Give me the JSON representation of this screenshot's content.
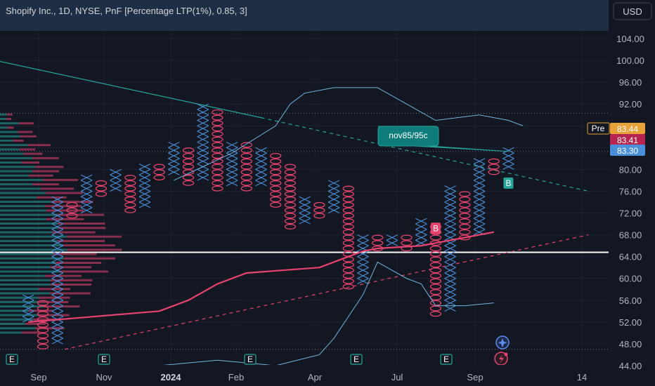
{
  "header": {
    "title": "Shopify Inc., 1D, NYSE, PnF [Percentage LTP(1%), 0.85, 3]",
    "currency_button": "USD"
  },
  "colors": {
    "background": "#131722",
    "x_column": "#4a90d9",
    "o_column": "#e8436f",
    "grid": "#363a45",
    "white_line": "#ffffff",
    "teal_trend": "#26a69a",
    "red_trend": "#e8436f",
    "band": "#6fb6e0"
  },
  "price_axis": {
    "ticks": [
      "104.00",
      "100.00",
      "96.00",
      "92.00",
      "80.00",
      "76.00",
      "72.00",
      "68.00",
      "64.00",
      "60.00",
      "56.00",
      "52.00",
      "48.00",
      "44.00"
    ],
    "badges": [
      {
        "prefix": "Pre",
        "label": "83.44",
        "value": 83.44,
        "color": "#e8a23a"
      },
      {
        "prefix": "",
        "label": "83.41",
        "value": 83.41,
        "color": "#b5254f"
      },
      {
        "prefix": "",
        "label": "83.30",
        "value": 83.3,
        "color": "#4a90d9"
      }
    ]
  },
  "time_axis": {
    "labels": [
      {
        "text": "Sep",
        "bold": false
      },
      {
        "text": "Nov",
        "bold": false
      },
      {
        "text": "2024",
        "bold": true
      },
      {
        "text": "Feb",
        "bold": false
      },
      {
        "text": "Apr",
        "bold": false
      },
      {
        "text": "Jul",
        "bold": false
      },
      {
        "text": "Sep",
        "bold": false
      },
      {
        "text": "14",
        "bold": false
      }
    ]
  },
  "annotations": {
    "callout": "nov85/95c",
    "buy_signals": [
      "B",
      "B"
    ],
    "earnings_marker": "E"
  },
  "chart_data": {
    "type": "point-and-figure",
    "title": "Shopify Inc., 1D, NYSE, PnF [Percentage LTP(1%), 0.85, 3]",
    "ylim": [
      43,
      107
    ],
    "ylabel": "",
    "currency": "USD",
    "last_price": 83.3,
    "horizontal_level": 64.8,
    "dotted_levels": [
      90.3,
      83.3,
      47.0
    ],
    "columns": [
      {
        "type": "X",
        "low": 52,
        "high": 56
      },
      {
        "type": "O",
        "low": 47,
        "high": 55
      },
      {
        "type": "X",
        "low": 48,
        "high": 74
      },
      {
        "type": "O",
        "low": 71,
        "high": 73
      },
      {
        "type": "X",
        "low": 72,
        "high": 78
      },
      {
        "type": "O",
        "low": 75,
        "high": 77
      },
      {
        "type": "X",
        "low": 76,
        "high": 79
      },
      {
        "type": "O",
        "low": 72,
        "high": 78
      },
      {
        "type": "X",
        "low": 73,
        "high": 80
      },
      {
        "type": "O",
        "low": 78,
        "high": 80
      },
      {
        "type": "X",
        "low": 79,
        "high": 84
      },
      {
        "type": "O",
        "low": 77,
        "high": 83
      },
      {
        "type": "X",
        "low": 78,
        "high": 91
      },
      {
        "type": "O",
        "low": 76,
        "high": 90
      },
      {
        "type": "X",
        "low": 77,
        "high": 84
      },
      {
        "type": "O",
        "low": 76,
        "high": 84
      },
      {
        "type": "X",
        "low": 77,
        "high": 83
      },
      {
        "type": "O",
        "low": 73,
        "high": 82
      },
      {
        "type": "O",
        "low": 69,
        "high": 80
      },
      {
        "type": "X",
        "low": 70,
        "high": 74
      },
      {
        "type": "O",
        "low": 71,
        "high": 73
      },
      {
        "type": "X",
        "low": 72,
        "high": 77
      },
      {
        "type": "O",
        "low": 58,
        "high": 76
      },
      {
        "type": "X",
        "low": 59,
        "high": 67
      },
      {
        "type": "O",
        "low": 65,
        "high": 67
      },
      {
        "type": "X",
        "low": 66,
        "high": 67
      },
      {
        "type": "O",
        "low": 65,
        "high": 67
      },
      {
        "type": "X",
        "low": 66,
        "high": 70
      },
      {
        "type": "O",
        "low": 53,
        "high": 69
      },
      {
        "type": "X",
        "low": 54,
        "high": 76
      },
      {
        "type": "O",
        "low": 67,
        "high": 75
      },
      {
        "type": "X",
        "low": 68,
        "high": 81
      },
      {
        "type": "O",
        "low": 79,
        "high": 81
      },
      {
        "type": "X",
        "low": 80,
        "high": 83
      }
    ],
    "upper_band": [
      [
        0,
        null
      ],
      [
        10,
        78
      ],
      [
        14,
        83
      ],
      [
        17,
        88
      ],
      [
        18,
        92
      ],
      [
        19,
        94
      ],
      [
        21,
        95
      ],
      [
        22,
        95
      ],
      [
        24,
        95
      ],
      [
        26,
        92
      ],
      [
        28,
        89
      ],
      [
        31,
        90
      ],
      [
        33,
        89
      ],
      [
        34,
        88
      ]
    ],
    "lower_band": [
      [
        9,
        44
      ],
      [
        13,
        45
      ],
      [
        17,
        44
      ],
      [
        20,
        46
      ],
      [
        21,
        49
      ],
      [
        23,
        57
      ],
      [
        24,
        63
      ],
      [
        26,
        60
      ],
      [
        27,
        59
      ],
      [
        28,
        55
      ],
      [
        30,
        55
      ],
      [
        32,
        55.5
      ]
    ],
    "red_trend": [
      [
        0,
        52
      ],
      [
        9,
        54
      ],
      [
        11,
        56
      ],
      [
        13,
        59
      ],
      [
        15,
        61
      ],
      [
        20,
        62
      ],
      [
        23,
        65
      ],
      [
        24,
        65.5
      ],
      [
        27,
        66
      ],
      [
        30,
        67.5
      ],
      [
        32,
        68.5
      ]
    ],
    "teal_trendline": {
      "from": [
        -7,
        103
      ],
      "to_solid": [
        16.5,
        89.5
      ],
      "to_dashed": [
        39,
        76
      ]
    },
    "red_dashed_trendline": {
      "from": [
        3,
        47
      ],
      "to": [
        39,
        68
      ]
    }
  }
}
